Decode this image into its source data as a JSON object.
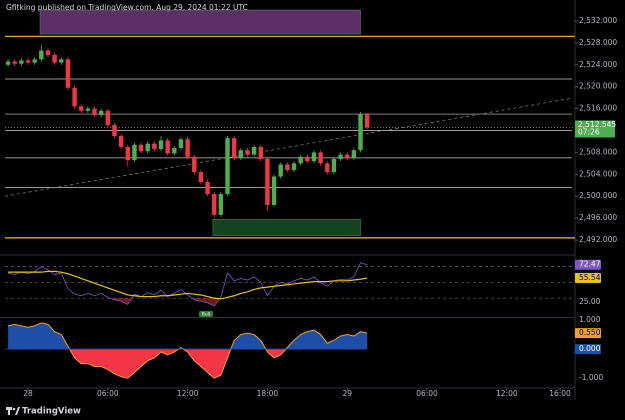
{
  "header": {
    "text": "Gfitking published on TradingView.com, Aug 29, 2024 01:22 UTC"
  },
  "footer": {
    "brand": "TradingView"
  },
  "chart_data": [
    {
      "type": "candlestick",
      "x": [
        -1.5,
        -1,
        -0.5,
        0,
        0.5,
        1,
        1.5,
        2,
        2.5,
        3,
        3.5,
        4,
        4.5,
        5,
        5.5,
        6,
        6.5,
        7,
        7.5,
        8,
        8.5,
        9,
        9.5,
        10,
        10.5,
        11,
        11.5,
        12,
        12.5,
        13,
        13.5,
        14,
        14.5,
        15,
        15.5,
        16,
        16.5,
        17,
        17.5,
        18,
        18.5,
        19,
        19.5,
        20,
        20.5,
        21,
        21.5,
        22,
        22.5,
        23,
        23.5,
        24,
        24.5,
        25,
        25.5
      ],
      "open": [
        2524.0,
        2524.6,
        2524.2,
        2524.8,
        2524.4,
        2525.0,
        2526.6,
        2525.8,
        2524.4,
        2525.0,
        2519.8,
        2516.4,
        2515.6,
        2516.0,
        2514.8,
        2515.6,
        2513.0,
        2511.0,
        2509.0,
        2506.6,
        2509.4,
        2508.2,
        2509.6,
        2508.6,
        2510.2,
        2507.8,
        2508.8,
        2510.4,
        2507.2,
        2504.4,
        2502.6,
        2500.4,
        2496.6,
        2500.4,
        2510.6,
        2507.0,
        2508.4,
        2507.6,
        2509.0,
        2506.8,
        2498.4,
        2503.6,
        2505.8,
        2504.8,
        2506.0,
        2507.2,
        2506.4,
        2508.0,
        2506.0,
        2504.4,
        2506.8,
        2507.6,
        2507.0,
        2508.4,
        2515.0
      ],
      "high": [
        2525.0,
        2525.0,
        2525.2,
        2525.2,
        2525.4,
        2527.6,
        2527.0,
        2526.2,
        2525.4,
        2525.4,
        2520.2,
        2516.8,
        2516.4,
        2516.4,
        2516.0,
        2516.0,
        2513.4,
        2511.4,
        2509.4,
        2509.8,
        2509.8,
        2510.0,
        2510.0,
        2511.0,
        2510.6,
        2509.2,
        2510.8,
        2510.8,
        2507.6,
        2504.8,
        2503.0,
        2500.8,
        2500.8,
        2511.0,
        2511.0,
        2508.8,
        2508.8,
        2509.4,
        2509.4,
        2507.2,
        2504.0,
        2506.2,
        2506.2,
        2506.4,
        2507.6,
        2507.6,
        2508.4,
        2508.4,
        2506.4,
        2507.2,
        2508.0,
        2508.0,
        2508.8,
        2515.4,
        2515.2
      ],
      "low": [
        2523.6,
        2523.8,
        2523.8,
        2524.0,
        2524.0,
        2524.6,
        2525.4,
        2524.0,
        2524.0,
        2519.4,
        2516.0,
        2515.2,
        2515.2,
        2514.4,
        2514.4,
        2512.6,
        2510.6,
        2508.6,
        2505.4,
        2506.2,
        2507.8,
        2507.8,
        2508.2,
        2508.2,
        2507.4,
        2507.4,
        2508.4,
        2506.8,
        2504.0,
        2502.2,
        2500.0,
        2496.2,
        2496.2,
        2500.0,
        2506.6,
        2506.6,
        2507.2,
        2507.2,
        2506.4,
        2497.4,
        2498.0,
        2503.2,
        2504.4,
        2504.4,
        2505.6,
        2506.0,
        2506.0,
        2505.6,
        2504.0,
        2504.0,
        2506.4,
        2506.6,
        2506.6,
        2508.0,
        2512.2
      ],
      "close": [
        2524.6,
        2524.2,
        2524.8,
        2524.4,
        2525.0,
        2526.6,
        2525.8,
        2524.4,
        2525.0,
        2519.8,
        2516.4,
        2515.6,
        2516.0,
        2514.8,
        2515.6,
        2513.0,
        2511.0,
        2509.0,
        2506.6,
        2509.4,
        2508.2,
        2509.6,
        2508.6,
        2510.2,
        2507.8,
        2508.8,
        2510.4,
        2507.2,
        2504.4,
        2502.6,
        2500.4,
        2496.6,
        2500.4,
        2510.6,
        2507.0,
        2508.4,
        2507.6,
        2509.0,
        2506.8,
        2498.4,
        2503.6,
        2505.8,
        2504.8,
        2506.0,
        2507.2,
        2506.4,
        2508.0,
        2506.0,
        2504.4,
        2506.8,
        2507.6,
        2507.0,
        2508.4,
        2515.0,
        2512.545
      ],
      "up_color": "#4caf50",
      "down_color": "#f23645",
      "xlim": [
        -1.73,
        40.9
      ],
      "xticks": [
        {
          "value": 0,
          "label": "28"
        },
        {
          "value": 6,
          "label": "06:00"
        },
        {
          "value": 12,
          "label": "12:00"
        },
        {
          "value": 18,
          "label": "18:00"
        },
        {
          "value": 24,
          "label": "29"
        },
        {
          "value": 30,
          "label": "06:00"
        },
        {
          "value": 36,
          "label": "12:00"
        },
        {
          "value": 40,
          "label": "16:00"
        }
      ],
      "ylim": [
        2490,
        2534
      ],
      "yticks": [
        {
          "value": 2492,
          "label": "2,492.000"
        },
        {
          "value": 2496,
          "label": "2,496.000"
        },
        {
          "value": 2500,
          "label": "2,500.000"
        },
        {
          "value": 2504,
          "label": "2,504.000"
        },
        {
          "value": 2508,
          "label": "2,508.000"
        },
        {
          "value": 2516,
          "label": "2,516.000"
        },
        {
          "value": 2520,
          "label": "2,520.000"
        },
        {
          "value": 2524,
          "label": "2,524.000"
        },
        {
          "value": 2528,
          "label": "2,528.000"
        },
        {
          "value": 2532,
          "label": "2,532.000"
        }
      ],
      "last_price": {
        "value": 2512.545,
        "label": "2,512.545"
      },
      "countdown": "07:26",
      "key_levels": [
        {
          "value": 2529.2,
          "color": "#e8c620"
        },
        {
          "value": 2492.4,
          "color": "#e8c620"
        }
      ],
      "levels": [
        2521.4,
        2515.0,
        2512.0,
        2507.0,
        2501.6
      ],
      "zones": [
        {
          "x": [
            0.9,
            25
          ],
          "y": [
            2529.6,
            2534
          ],
          "color": "#7b3f8a"
        },
        {
          "x": [
            13.9,
            25
          ],
          "y": [
            2492.8,
            2495.8
          ],
          "color": "#1e5a2a"
        }
      ],
      "trendline": {
        "x": [
          -1.73,
          40.9
        ],
        "y": [
          2500.0,
          2517.9
        ]
      }
    },
    {
      "type": "line",
      "ylim": [
        6,
        81
      ],
      "yticks": [
        {
          "value": 25,
          "label": "25.00"
        }
      ],
      "bands": [
        70,
        50,
        30
      ],
      "signal_label": "Bull",
      "series": [
        {
          "name": "RSI",
          "color": "#7e57c2",
          "last_label": "72.47",
          "values": [
            62,
            60,
            63,
            61,
            64,
            70,
            66,
            60,
            62,
            42,
            35,
            33,
            36,
            33,
            36,
            31,
            28,
            26,
            22,
            35,
            32,
            37,
            34,
            40,
            32,
            36,
            41,
            34,
            28,
            26,
            24,
            20,
            32,
            62,
            52,
            55,
            53,
            57,
            50,
            33,
            45,
            50,
            48,
            52,
            55,
            53,
            57,
            50,
            45,
            52,
            54,
            53,
            57,
            75,
            72.47
          ]
        },
        {
          "name": "RSI MA",
          "color": "#e6c21e",
          "last_label": "55.54",
          "values": [
            63,
            63,
            63,
            63,
            63,
            63,
            64,
            64,
            63,
            61,
            58,
            55,
            52,
            49,
            46,
            43,
            40,
            37,
            34,
            33,
            32,
            32,
            32,
            33,
            33,
            34,
            35,
            36,
            35,
            34,
            32,
            30,
            29,
            31,
            33,
            36,
            38,
            41,
            43,
            44,
            45,
            46,
            47,
            48,
            49,
            50,
            51,
            51,
            51,
            52,
            52,
            52,
            53,
            54,
            55.54
          ]
        }
      ]
    },
    {
      "type": "area",
      "ylim": [
        -1.34,
        1.07
      ],
      "yticks": [
        {
          "value": 1,
          "label": "1.000"
        },
        {
          "value": -1,
          "label": "-1.000"
        }
      ],
      "zero": {
        "value": 0,
        "label": "0.000"
      },
      "pos_color": "#1e4fa8",
      "neg_color": "#f23645",
      "line_color": "#f0a030",
      "last_label": "0.550",
      "values": [
        0.8,
        0.85,
        0.8,
        0.75,
        0.8,
        0.9,
        0.85,
        0.6,
        0.5,
        0.1,
        -0.3,
        -0.5,
        -0.5,
        -0.6,
        -0.6,
        -0.7,
        -0.85,
        -0.95,
        -1.0,
        -0.8,
        -0.6,
        -0.4,
        -0.3,
        -0.1,
        -0.2,
        -0.1,
        0.05,
        -0.1,
        -0.4,
        -0.6,
        -0.8,
        -1.0,
        -0.9,
        -0.3,
        0.3,
        0.5,
        0.55,
        0.5,
        0.3,
        -0.1,
        -0.3,
        -0.2,
        0.05,
        0.3,
        0.5,
        0.6,
        0.65,
        0.5,
        0.2,
        0.3,
        0.45,
        0.5,
        0.45,
        0.6,
        0.55
      ]
    }
  ]
}
